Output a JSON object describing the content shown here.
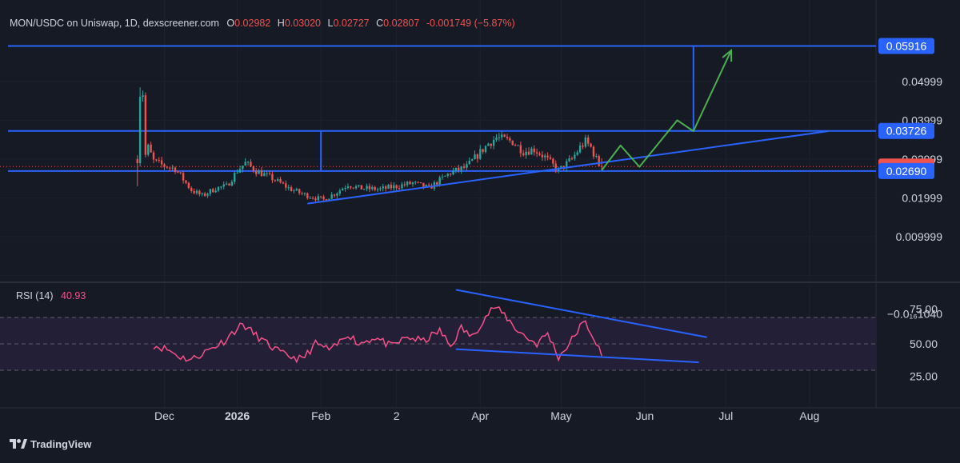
{
  "header": {
    "symbol": "MON/USDC on Uniswap, 1D, dexscreener.com",
    "o_label": "O",
    "o_value": "0.02982",
    "h_label": "H",
    "h_value": "0.03020",
    "l_label": "L",
    "l_value": "0.02727",
    "c_label": "C",
    "c_value": "0.02807",
    "change": "-0.001749 (−5.87%)"
  },
  "colors": {
    "up": "#26a69a",
    "down": "#ef5350",
    "level": "#2962ff",
    "projection": "#4caf50",
    "rsi": "#f7518a",
    "rsi_band": "#221f36"
  },
  "price_axis": {
    "labels": [
      {
        "text": "0.04999",
        "value": 0.05
      },
      {
        "text": "0.03999",
        "value": 0.04
      },
      {
        "text": "0.02999",
        "value": 0.03
      },
      {
        "text": "0.01999",
        "value": 0.02
      },
      {
        "text": "0.009999",
        "value": 0.01
      }
    ],
    "neg_label": "−0.0₁₆1040"
  },
  "badges": [
    {
      "text": "0.05916",
      "value": 0.05916,
      "kind": "level"
    },
    {
      "text": "0.03726",
      "value": 0.03726,
      "kind": "level"
    },
    {
      "text": "0.02807",
      "value": 0.02807,
      "kind": "last"
    },
    {
      "text": "0.02690",
      "value": 0.0269,
      "kind": "level"
    }
  ],
  "rsi": {
    "label": "RSI (14)",
    "value": "40.93",
    "axis": [
      {
        "text": "75.00",
        "value": 75
      },
      {
        "text": "50.00",
        "value": 50
      },
      {
        "text": "25.00",
        "value": 25
      }
    ],
    "upper": 70,
    "middle": 50,
    "lower": 30
  },
  "time_axis": [
    {
      "text": "Dec",
      "day": 4,
      "bold": false
    },
    {
      "text": "2026",
      "day": 31,
      "bold": true
    },
    {
      "text": "Feb",
      "day": 62,
      "bold": false
    },
    {
      "text": "2",
      "day": 90,
      "bold": false
    },
    {
      "text": "Apr",
      "day": 121,
      "bold": false
    },
    {
      "text": "May",
      "day": 151,
      "bold": false
    },
    {
      "text": "Jun",
      "day": 182,
      "bold": false
    },
    {
      "text": "Jul",
      "day": 212,
      "bold": false
    },
    {
      "text": "Aug",
      "day": 243,
      "bold": false
    }
  ],
  "brand": "TradingView",
  "chart_data": {
    "type": "candlestick",
    "title": "MON/USDC on Uniswap, 1D, dexscreener.com",
    "x_unit": "days since 2025-12-01",
    "y_scale": "linear",
    "ylim": [
      -0.01,
      0.061
    ],
    "levels": [
      0.05916,
      0.03726,
      0.0269
    ],
    "last_price": 0.02807,
    "waypoints": [
      {
        "d": -6,
        "v": 0.03
      },
      {
        "d": -5,
        "v": 0.047
      },
      {
        "d": -4,
        "v": 0.047
      },
      {
        "d": -3,
        "v": 0.031
      },
      {
        "d": -2,
        "v": 0.033
      },
      {
        "d": 0,
        "v": 0.0295
      },
      {
        "d": 3,
        "v": 0.0285
      },
      {
        "d": 8,
        "v": 0.0275
      },
      {
        "d": 14,
        "v": 0.022
      },
      {
        "d": 18,
        "v": 0.0205
      },
      {
        "d": 23,
        "v": 0.0225
      },
      {
        "d": 27,
        "v": 0.023
      },
      {
        "d": 31,
        "v": 0.027
      },
      {
        "d": 34,
        "v": 0.029
      },
      {
        "d": 38,
        "v": 0.027
      },
      {
        "d": 44,
        "v": 0.025
      },
      {
        "d": 50,
        "v": 0.0225
      },
      {
        "d": 55,
        "v": 0.021
      },
      {
        "d": 60,
        "v": 0.02
      },
      {
        "d": 63,
        "v": 0.0195
      },
      {
        "d": 68,
        "v": 0.0215
      },
      {
        "d": 72,
        "v": 0.0235
      },
      {
        "d": 76,
        "v": 0.0225
      },
      {
        "d": 84,
        "v": 0.0222
      },
      {
        "d": 90,
        "v": 0.023
      },
      {
        "d": 96,
        "v": 0.0238
      },
      {
        "d": 102,
        "v": 0.0225
      },
      {
        "d": 110,
        "v": 0.0265
      },
      {
        "d": 116,
        "v": 0.028
      },
      {
        "d": 120,
        "v": 0.031
      },
      {
        "d": 124,
        "v": 0.034
      },
      {
        "d": 127,
        "v": 0.0355
      },
      {
        "d": 133,
        "v": 0.0345
      },
      {
        "d": 137,
        "v": 0.032
      },
      {
        "d": 141,
        "v": 0.0325
      },
      {
        "d": 145,
        "v": 0.0305
      },
      {
        "d": 150,
        "v": 0.027
      },
      {
        "d": 155,
        "v": 0.03
      },
      {
        "d": 158,
        "v": 0.033
      },
      {
        "d": 160,
        "v": 0.0345
      },
      {
        "d": 162,
        "v": 0.033
      },
      {
        "d": 165,
        "v": 0.0285
      },
      {
        "d": 166,
        "v": 0.0281
      }
    ],
    "support_trendline": [
      {
        "d": 57,
        "v": 0.0185
      },
      {
        "d": 250,
        "v": 0.0372
      }
    ],
    "projection_path": [
      {
        "d": 166,
        "v": 0.0271
      },
      {
        "d": 173,
        "v": 0.0335
      },
      {
        "d": 180,
        "v": 0.028
      },
      {
        "d": 194,
        "v": 0.04
      },
      {
        "d": 200,
        "v": 0.0372
      },
      {
        "d": 214,
        "v": 0.058
      }
    ],
    "measure_lines": [
      {
        "d": 62,
        "from": 0.0269,
        "to": 0.03726
      },
      {
        "d": 200,
        "from": 0.03726,
        "to": 0.05916
      }
    ],
    "rsi_waypoints": [
      {
        "d": 0,
        "v": 49
      },
      {
        "d": 5,
        "v": 46
      },
      {
        "d": 10,
        "v": 40
      },
      {
        "d": 14,
        "v": 38
      },
      {
        "d": 20,
        "v": 45
      },
      {
        "d": 26,
        "v": 52
      },
      {
        "d": 30,
        "v": 60
      },
      {
        "d": 33,
        "v": 65
      },
      {
        "d": 37,
        "v": 58
      },
      {
        "d": 42,
        "v": 50
      },
      {
        "d": 48,
        "v": 42
      },
      {
        "d": 55,
        "v": 38
      },
      {
        "d": 60,
        "v": 50
      },
      {
        "d": 66,
        "v": 45
      },
      {
        "d": 72,
        "v": 58
      },
      {
        "d": 76,
        "v": 50
      },
      {
        "d": 82,
        "v": 55
      },
      {
        "d": 88,
        "v": 48
      },
      {
        "d": 94,
        "v": 55
      },
      {
        "d": 100,
        "v": 52
      },
      {
        "d": 106,
        "v": 60
      },
      {
        "d": 110,
        "v": 48
      },
      {
        "d": 114,
        "v": 62
      },
      {
        "d": 118,
        "v": 55
      },
      {
        "d": 122,
        "v": 68
      },
      {
        "d": 126,
        "v": 78
      },
      {
        "d": 130,
        "v": 72
      },
      {
        "d": 134,
        "v": 62
      },
      {
        "d": 138,
        "v": 55
      },
      {
        "d": 142,
        "v": 50
      },
      {
        "d": 146,
        "v": 58
      },
      {
        "d": 150,
        "v": 40
      },
      {
        "d": 154,
        "v": 50
      },
      {
        "d": 158,
        "v": 63
      },
      {
        "d": 160,
        "v": 66
      },
      {
        "d": 163,
        "v": 55
      },
      {
        "d": 166,
        "v": 40.93
      }
    ],
    "rsi_trendlines": [
      {
        "from": {
          "d": 112,
          "v": 91
        },
        "to": {
          "d": 205,
          "v": 55
        }
      },
      {
        "from": {
          "d": 112,
          "v": 46
        },
        "to": {
          "d": 202,
          "v": 36
        }
      }
    ]
  }
}
